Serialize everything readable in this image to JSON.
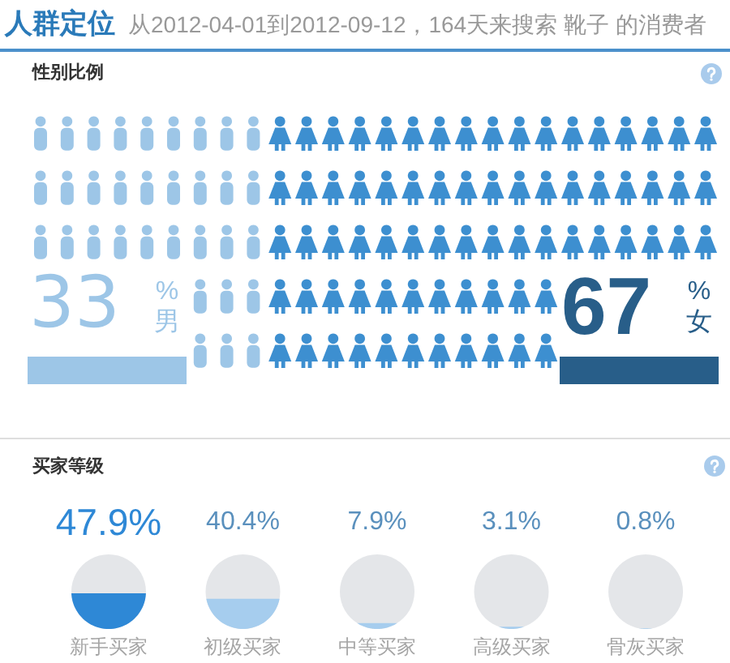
{
  "chart_data": [
    {
      "type": "other",
      "title": "人群定位",
      "subtitle": "从2012-04-01到2012-09-12，164天来搜索 靴子 的消费者"
    },
    {
      "type": "other",
      "title": "性别比例",
      "categories": [
        "%\n男",
        "%\n女"
      ],
      "values": [
        33,
        67
      ],
      "data_labels": true,
      "colors": [
        "#9dc6e7",
        "#3d8fd0"
      ]
    },
    {
      "type": "other",
      "title": "买家等级",
      "categories": [
        "新手买家",
        "初级买家",
        "中等买家",
        "高级买家",
        "骨灰买家"
      ],
      "values": [
        47.9,
        40.4,
        7.9,
        3.1,
        0.8
      ],
      "value_labels": [
        "47.9%",
        "40.4%",
        "7.9%",
        "3.1%",
        "0.8%"
      ],
      "colors": [
        "#2e88d6",
        "#a6cdee",
        "#a6cdee",
        "#a6cdee",
        "#a6cdee"
      ]
    }
  ]
}
